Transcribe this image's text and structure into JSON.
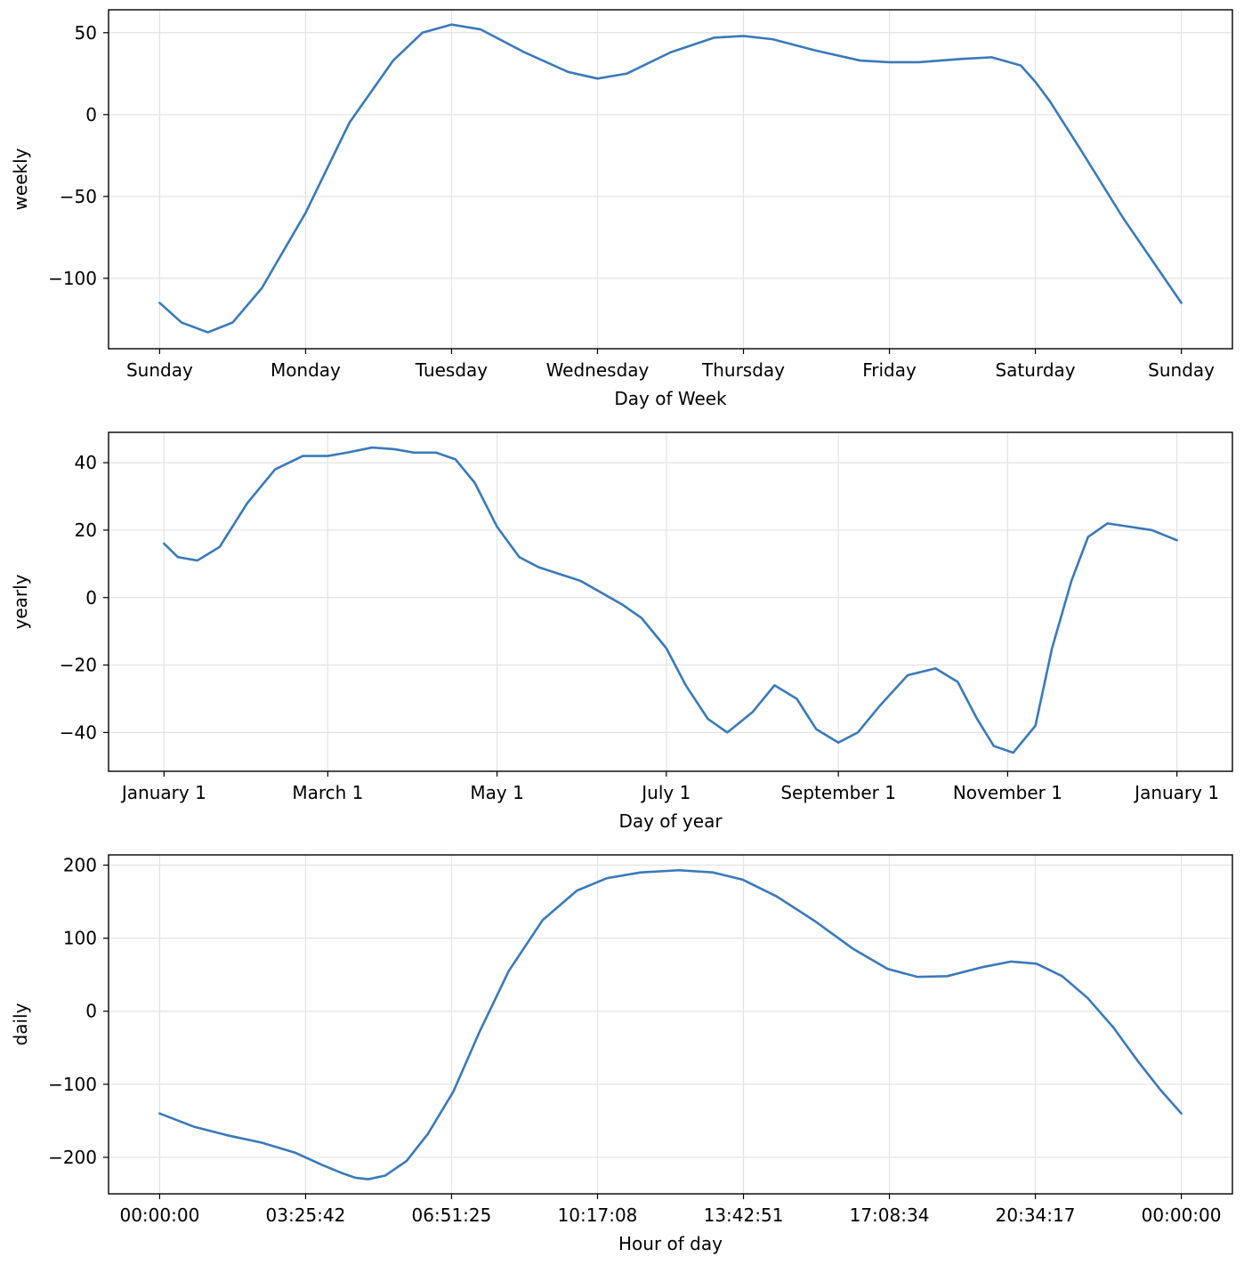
{
  "chart_data": [
    {
      "type": "line",
      "title": "",
      "xlabel": "Day of Week",
      "ylabel": "weekly",
      "x_tick_labels": [
        "Sunday",
        "Monday",
        "Tuesday",
        "Wednesday",
        "Thursday",
        "Friday",
        "Saturday",
        "Sunday"
      ],
      "y_ticks": [
        50,
        0,
        -50,
        -100
      ],
      "y_tick_labels": [
        "50",
        "0",
        "−50",
        "−100"
      ],
      "xlim": [
        -0.35,
        7.35
      ],
      "ylim": [
        -143,
        64
      ],
      "grid": true,
      "color": "#3a79b9",
      "series": [
        {
          "x": [
            0,
            0.15,
            0.33,
            0.5,
            0.7,
            1.0,
            1.3,
            1.6,
            1.8,
            2.0,
            2.2,
            2.5,
            2.8,
            3.0,
            3.2,
            3.5,
            3.8,
            4.0,
            4.2,
            4.5,
            4.8,
            5.0,
            5.2,
            5.5,
            5.7,
            5.9,
            6.0,
            6.1,
            6.3,
            6.6,
            7.0
          ],
          "y": [
            -115,
            -127,
            -133,
            -127,
            -106,
            -60,
            -5,
            33,
            50,
            55,
            52,
            38,
            26,
            22,
            25,
            38,
            47,
            48,
            46,
            39,
            33,
            32,
            32,
            34,
            35,
            30,
            20,
            8,
            -20,
            -63,
            -115
          ]
        }
      ]
    },
    {
      "type": "line",
      "title": "",
      "xlabel": "Day of year",
      "ylabel": "yearly",
      "x_tick_labels": [
        "January 1",
        "March 1",
        "May 1",
        "July 1",
        "September 1",
        "November 1",
        "January 1"
      ],
      "y_ticks": [
        40,
        20,
        0,
        -20,
        -40
      ],
      "y_tick_labels": [
        "40",
        "20",
        "0",
        "−20",
        "−40"
      ],
      "xlim": [
        -20,
        385
      ],
      "ylim": [
        -51.5,
        49
      ],
      "grid": true,
      "color": "#3a79b9",
      "series": [
        {
          "x": [
            0,
            5,
            12,
            20,
            30,
            40,
            50,
            59,
            66,
            75,
            83,
            90,
            98,
            105,
            112,
            120,
            128,
            135,
            150,
            165,
            172,
            181,
            188,
            196,
            203,
            212,
            220,
            228,
            235,
            243,
            250,
            258,
            268,
            278,
            286,
            293,
            299,
            306,
            314,
            320,
            327,
            333,
            340,
            348,
            356,
            365
          ],
          "y": [
            16,
            12,
            11,
            15,
            28,
            38,
            42,
            42,
            43,
            44.5,
            44,
            43,
            43,
            41,
            34,
            21,
            12,
            9,
            5,
            -2,
            -6,
            -15,
            -26,
            -36,
            -40,
            -34,
            -26,
            -30,
            -39,
            -43,
            -40,
            -32,
            -23,
            -21,
            -25,
            -36,
            -44,
            -46,
            -38,
            -15,
            5,
            18,
            22,
            21,
            20,
            17
          ]
        }
      ]
    },
    {
      "type": "line",
      "title": "",
      "xlabel": "Hour of day",
      "ylabel": "daily",
      "x_tick_labels": [
        "00:00:00",
        "03:25:42",
        "06:51:25",
        "10:17:08",
        "13:42:51",
        "17:08:34",
        "20:34:17",
        "00:00:00"
      ],
      "y_ticks": [
        200,
        100,
        0,
        -100,
        -200
      ],
      "y_tick_labels": [
        "200",
        "100",
        "0",
        "−100",
        "−200"
      ],
      "xlim": [
        -1.2,
        25.2
      ],
      "ylim": [
        -250,
        214
      ],
      "grid": true,
      "color": "#3a79b9",
      "series": [
        {
          "x": [
            0,
            0.8,
            1.6,
            2.4,
            3.2,
            3.8,
            4.3,
            4.6,
            4.9,
            5.3,
            5.8,
            6.3,
            6.9,
            7.5,
            8.2,
            9.0,
            9.8,
            10.5,
            11.3,
            12.2,
            13.0,
            13.7,
            14.5,
            15.4,
            16.3,
            17.1,
            17.8,
            18.5,
            19.3,
            20.0,
            20.6,
            21.2,
            21.8,
            22.4,
            23.0,
            23.5,
            24.0
          ],
          "y": [
            -140,
            -158,
            -170,
            -180,
            -194,
            -210,
            -222,
            -228,
            -230,
            -225,
            -205,
            -168,
            -110,
            -30,
            55,
            125,
            165,
            182,
            190,
            193,
            190,
            180,
            157,
            123,
            85,
            58,
            47,
            48,
            60,
            68,
            65,
            48,
            18,
            -22,
            -70,
            -107,
            -140
          ]
        }
      ]
    }
  ]
}
